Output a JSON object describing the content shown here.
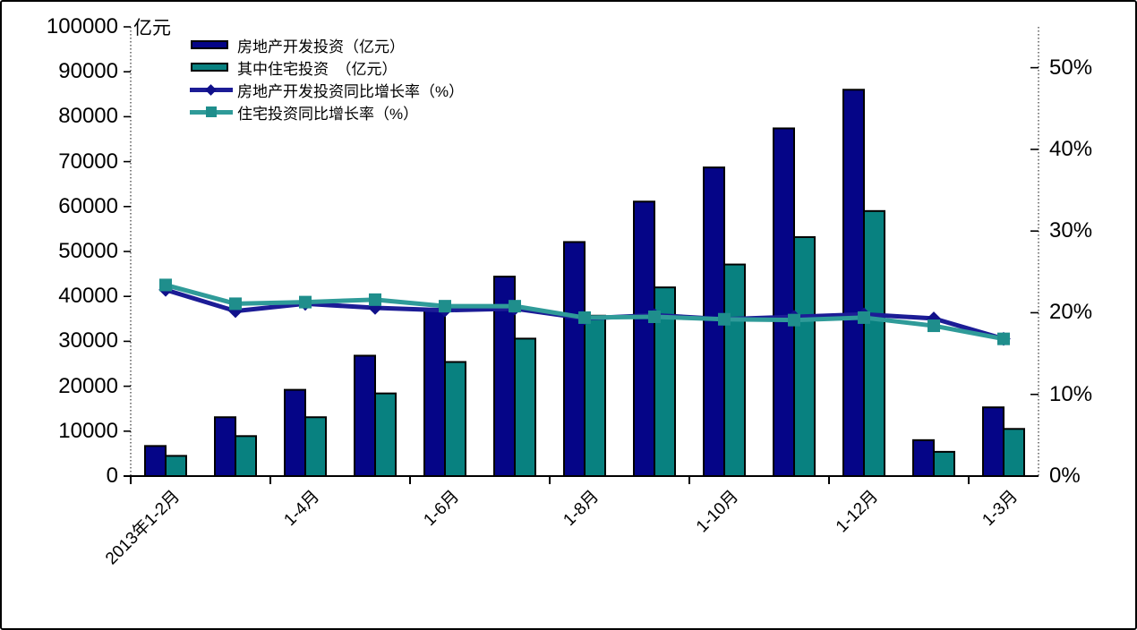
{
  "colors": {
    "background": "#FFFFFF",
    "border": "#000000",
    "axis": "#000000",
    "dashed_axis": "#333333",
    "bar_investment": "#050587",
    "bar_residential": "#088180",
    "line_investment": "#1C1C96",
    "line_residential": "#2F9B99",
    "marker_investment": "#10108A",
    "marker_residential": "#1F8E8C"
  },
  "legend": {
    "items": [
      {
        "label": "房地产开发投资（亿元）",
        "type": "bar",
        "color": "#050587"
      },
      {
        "label": "其中住宅投资　（亿元）",
        "type": "bar",
        "color": "#088180"
      },
      {
        "label": "房地产开发投资同比增长率（%）",
        "type": "line-diamond",
        "color": "#1C1C96",
        "marker_color": "#10108A"
      },
      {
        "label": "住宅投资同比增长率（%）",
        "type": "line-square",
        "color": "#2F9B99",
        "marker_color": "#1F8E8C"
      }
    ]
  },
  "chart_data": {
    "type": "bar",
    "subtype": "bar+line combo, dual axis",
    "title": "",
    "categories": [
      "2013年1-2月",
      "",
      "1-4月",
      "",
      "1-6月",
      "",
      "1-8月",
      "",
      "1-10月",
      "",
      "1-12月",
      "",
      "1-3月"
    ],
    "x_tick_labels": [
      "2013年1-2月",
      "1-4月",
      "1-6月",
      "1-8月",
      "1-10月",
      "1-12月",
      "1-3月"
    ],
    "series": [
      {
        "name": "房地产开发投资（亿元）",
        "type": "bar",
        "axis": "left",
        "color": "#050587",
        "values": [
          6700,
          13100,
          19200,
          26800,
          36800,
          44400,
          52100,
          61100,
          68700,
          77400,
          86000,
          8000,
          15300
        ]
      },
      {
        "name": "其中住宅投资　（亿元）",
        "type": "bar",
        "axis": "left",
        "color": "#088180",
        "values": [
          4500,
          8900,
          13100,
          18400,
          25400,
          30600,
          35700,
          42000,
          47100,
          53200,
          59000,
          5400,
          10500
        ]
      },
      {
        "name": "房地产开发投资同比增长率（%）",
        "type": "line",
        "axis": "right",
        "color": "#1C1C96",
        "marker": "diamond",
        "marker_color": "#10108A",
        "values": [
          22.8,
          20.2,
          21.1,
          20.6,
          20.3,
          20.5,
          19.3,
          19.7,
          19.2,
          19.5,
          19.8,
          19.3,
          16.8
        ]
      },
      {
        "name": "住宅投资同比增长率（%）",
        "type": "line",
        "axis": "right",
        "color": "#2F9B99",
        "marker": "square",
        "marker_color": "#1F8E8C",
        "values": [
          23.4,
          21.1,
          21.3,
          21.6,
          20.8,
          20.8,
          19.4,
          19.5,
          19.2,
          19.1,
          19.4,
          18.4,
          16.8
        ]
      }
    ],
    "left_axis": {
      "label": "亿元",
      "min": 0,
      "max": 100000,
      "step": 10000,
      "tick_labels": [
        "0",
        "10000",
        "20000",
        "30000",
        "40000",
        "50000",
        "60000",
        "70000",
        "80000",
        "90000",
        "100000"
      ]
    },
    "right_axis": {
      "min": 0,
      "max": 55,
      "step": 10,
      "tick_labels": [
        "0%",
        "10%",
        "20%",
        "30%",
        "40%",
        "50%"
      ]
    },
    "grid": false,
    "legend_position": "top-left-inside"
  }
}
